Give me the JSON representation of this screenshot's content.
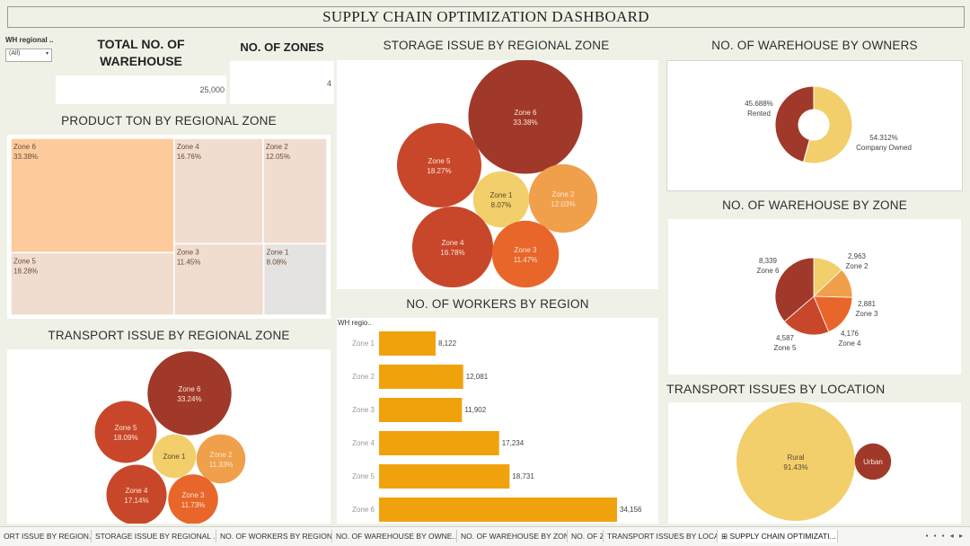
{
  "dashboard_title": "SUPPLY CHAIN OPTIMIZATION DASHBOARD",
  "filter": {
    "label": "WH regional ..",
    "value": "(All)",
    "arrow": "▾"
  },
  "kpis": {
    "total_warehouse": {
      "title_line1": "TOTAL NO. OF",
      "title_line2": "WAREHOUSE",
      "value": "25,000"
    },
    "zones": {
      "title": "NO. OF ZONES",
      "value": "4"
    }
  },
  "titles": {
    "product_ton": "PRODUCT TON BY REGIONAL ZONE",
    "storage_issue": "STORAGE ISSUE BY REGIONAL ZONE",
    "owners": "NO. OF WAREHOUSE BY OWNERS",
    "wh_zone": "NO. OF WAREHOUSE BY ZONE",
    "transport_issue": "TRANSPORT ISSUE BY REGIONAL ZONE",
    "workers": "NO. OF WORKERS BY REGION",
    "transport_location": "TRANSPORT ISSUES BY LOCATION"
  },
  "colors": {
    "dark_red": "#a0392a",
    "red_orange": "#c8472b",
    "orange": "#e8662a",
    "light_orange": "#f0a04a",
    "yellow": "#f2cf6a",
    "bar": "#f0a20c",
    "treemap_big": "#fdcb9b",
    "treemap_mid": "#f0ddd0",
    "treemap_grey": "#e5e3e1"
  },
  "chart_data": [
    {
      "id": "product_ton",
      "type": "treemap",
      "title": "PRODUCT TON BY REGIONAL ZONE",
      "items": [
        {
          "name": "Zone 6",
          "label": "33.38%",
          "value": 33.38
        },
        {
          "name": "Zone 4",
          "label": "16.76%",
          "value": 16.76
        },
        {
          "name": "Zone 2",
          "label": "12.05%",
          "value": 12.05
        },
        {
          "name": "Zone 5",
          "label": "18.28%",
          "value": 18.28
        },
        {
          "name": "Zone 3",
          "label": "11.45%",
          "value": 11.45
        },
        {
          "name": "Zone 1",
          "label": "8.08%",
          "value": 8.08
        }
      ]
    },
    {
      "id": "storage_issue",
      "type": "bubble",
      "title": "STORAGE ISSUE BY REGIONAL ZONE",
      "items": [
        {
          "name": "Zone 6",
          "label": "33.38%",
          "value": 33.38
        },
        {
          "name": "Zone 5",
          "label": "18.27%",
          "value": 18.27
        },
        {
          "name": "Zone 1",
          "label": "8.07%",
          "value": 8.07
        },
        {
          "name": "Zone 2",
          "label": "12.03%",
          "value": 12.03
        },
        {
          "name": "Zone 4",
          "label": "16.78%",
          "value": 16.78
        },
        {
          "name": "Zone 3",
          "label": "11.47%",
          "value": 11.47
        }
      ]
    },
    {
      "id": "owners",
      "type": "pie",
      "title": "NO. OF WAREHOUSE BY OWNERS",
      "items": [
        {
          "name": "Rented",
          "label": "45.688%",
          "value": 45.688
        },
        {
          "name": "Company Owned",
          "label": "54.312%",
          "value": 54.312
        }
      ]
    },
    {
      "id": "wh_zone",
      "type": "pie",
      "title": "NO. OF WAREHOUSE BY ZONE",
      "items": [
        {
          "name": "Zone 2",
          "label": "2,963",
          "value": 2963
        },
        {
          "name": "Zone 3",
          "label": "2,881",
          "value": 2881
        },
        {
          "name": "Zone 4",
          "label": "4,176",
          "value": 4176
        },
        {
          "name": "Zone 5",
          "label": "4,587",
          "value": 4587
        },
        {
          "name": "Zone 6",
          "label": "8,339",
          "value": 8339
        }
      ]
    },
    {
      "id": "transport_issue",
      "type": "bubble",
      "title": "TRANSPORT ISSUE BY REGIONAL ZONE",
      "items": [
        {
          "name": "Zone 6",
          "label": "33.24%",
          "value": 33.24
        },
        {
          "name": "Zone 5",
          "label": "18.09%",
          "value": 18.09
        },
        {
          "name": "Zone 1",
          "label": "",
          "value": 9.0
        },
        {
          "name": "Zone 2",
          "label": "11.33%",
          "value": 11.33
        },
        {
          "name": "Zone 4",
          "label": "17.14%",
          "value": 17.14
        },
        {
          "name": "Zone 3",
          "label": "11.73%",
          "value": 11.73
        }
      ]
    },
    {
      "id": "workers",
      "type": "bar",
      "orientation": "horizontal",
      "title": "NO. OF WORKERS BY REGION",
      "header": "WH regio..",
      "categories": [
        "Zone 1",
        "Zone 2",
        "Zone 3",
        "Zone 4",
        "Zone 5",
        "Zone 6"
      ],
      "values": [
        8122,
        12081,
        11902,
        17234,
        18731,
        34156
      ],
      "value_labels": [
        "8,122",
        "12,081",
        "11,902",
        "17,234",
        "18,731",
        "34,156"
      ]
    },
    {
      "id": "transport_location",
      "type": "bubble",
      "title": "TRANSPORT ISSUES BY LOCATION",
      "items": [
        {
          "name": "Rural",
          "label": "91.43%",
          "value": 91.43
        },
        {
          "name": "Urban",
          "label": "",
          "value": 8.57
        }
      ]
    }
  ],
  "tabs": [
    "ORT ISSUE BY REGION...",
    "STORAGE ISSUE BY REGIONAL ...",
    "NO. OF WORKERS BY REGION",
    "NO. OF WAREHOUSE BY OWNE...",
    "NO. OF WAREHOUSE BY ZONE",
    "NO. OF ZONES",
    "TRANSPORT ISSUES BY LOCAT...",
    "SUPPLY CHAIN OPTIMIZATI..."
  ],
  "active_tab": 7,
  "tab_icons": "▪ ▪ ▪ ◂ ▸"
}
